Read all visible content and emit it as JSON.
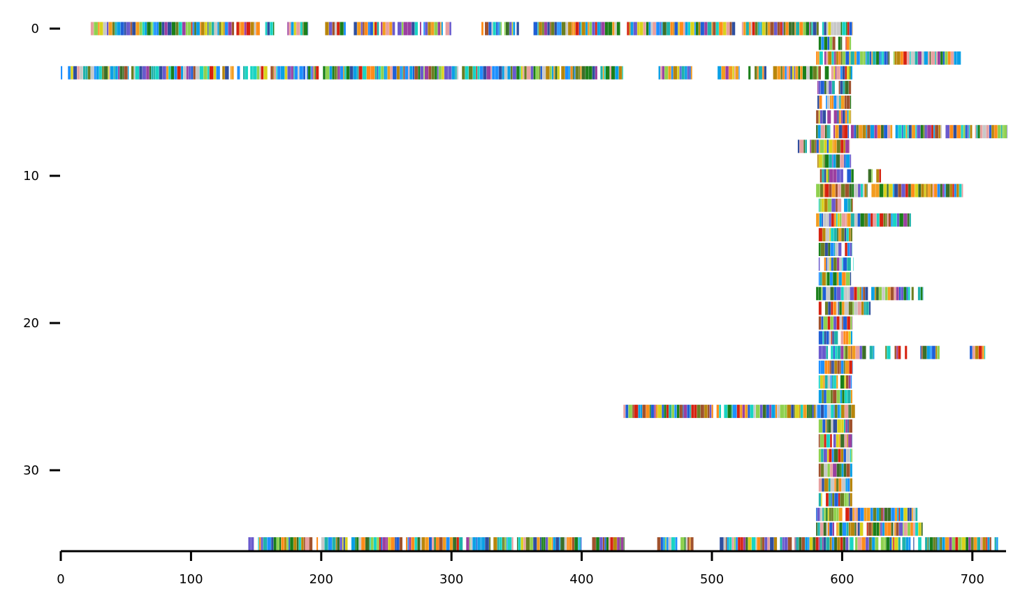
{
  "chart_data": {
    "type": "broken_barh",
    "title": "",
    "xlabel": "",
    "ylabel": "",
    "xlim": [
      0,
      727
    ],
    "ylim": [
      35.5,
      -1.5
    ],
    "y_inverted": true,
    "grid": false,
    "legend": "none",
    "x_ticks": [
      0,
      100,
      200,
      300,
      400,
      500,
      600,
      700
    ],
    "x_tick_labels": [
      "0",
      "100",
      "200",
      "300",
      "400",
      "500",
      "600",
      "700"
    ],
    "y_ticks": [
      0,
      10,
      20,
      30
    ],
    "y_tick_labels": [
      "0",
      "10",
      "20",
      "30"
    ],
    "palette": [
      "#1a7f1a",
      "#d62210",
      "#f39c1f",
      "#1f5fd6",
      "#3a6f28",
      "#19d4c4",
      "#d9d21c",
      "#6b7f22",
      "#0aa0e6",
      "#9b3fa0",
      "#2f4f9f",
      "#c8c8c8",
      "#e8a0a0",
      "#8fd14f",
      "#ff8c1a",
      "#6a5acd",
      "#1e90ff",
      "#a0522d",
      "#20b2aa",
      "#b8860b"
    ],
    "rows": [
      {
        "y": 0,
        "segments": [
          [
            23,
            153
          ],
          [
            157,
            164
          ],
          [
            174,
            190
          ],
          [
            203,
            219
          ],
          [
            225,
            300
          ],
          [
            323,
            352
          ],
          [
            363,
            518
          ],
          [
            523,
            608
          ]
        ]
      },
      {
        "y": 1,
        "segments": [
          [
            582,
            607
          ]
        ]
      },
      {
        "y": 2,
        "segments": [
          [
            580,
            692
          ]
        ]
      },
      {
        "y": 3,
        "segments": [
          [
            0,
            432
          ],
          [
            459,
            485
          ],
          [
            502,
            522
          ],
          [
            528,
            542
          ],
          [
            547,
            608
          ]
        ]
      },
      {
        "y": 4,
        "segments": [
          [
            581,
            607
          ]
        ]
      },
      {
        "y": 5,
        "segments": [
          [
            581,
            607
          ]
        ]
      },
      {
        "y": 6,
        "segments": [
          [
            580,
            607
          ]
        ]
      },
      {
        "y": 7,
        "segments": [
          [
            580,
            727
          ]
        ]
      },
      {
        "y": 8,
        "segments": [
          [
            565,
            606
          ]
        ]
      },
      {
        "y": 9,
        "segments": [
          [
            581,
            607
          ]
        ]
      },
      {
        "y": 10,
        "segments": [
          [
            583,
            609
          ],
          [
            620,
            630
          ]
        ]
      },
      {
        "y": 11,
        "segments": [
          [
            580,
            693
          ]
        ]
      },
      {
        "y": 12,
        "segments": [
          [
            582,
            608
          ]
        ]
      },
      {
        "y": 13,
        "segments": [
          [
            580,
            653
          ]
        ]
      },
      {
        "y": 14,
        "segments": [
          [
            582,
            608
          ]
        ]
      },
      {
        "y": 15,
        "segments": [
          [
            582,
            608
          ]
        ]
      },
      {
        "y": 16,
        "segments": [
          [
            582,
            609
          ]
        ]
      },
      {
        "y": 17,
        "segments": [
          [
            582,
            607
          ]
        ]
      },
      {
        "y": 18,
        "segments": [
          [
            580,
            662
          ]
        ]
      },
      {
        "y": 19,
        "segments": [
          [
            582,
            622
          ]
        ]
      },
      {
        "y": 20,
        "segments": [
          [
            582,
            608
          ]
        ]
      },
      {
        "y": 21,
        "segments": [
          [
            582,
            608
          ]
        ]
      },
      {
        "y": 22,
        "segments": [
          [
            582,
            650
          ],
          [
            660,
            675
          ],
          [
            698,
            710
          ]
        ]
      },
      {
        "y": 23,
        "segments": [
          [
            582,
            608
          ]
        ]
      },
      {
        "y": 24,
        "segments": [
          [
            582,
            608
          ]
        ]
      },
      {
        "y": 25,
        "segments": [
          [
            582,
            608
          ]
        ]
      },
      {
        "y": 26,
        "segments": [
          [
            432,
            610
          ]
        ]
      },
      {
        "y": 27,
        "segments": [
          [
            582,
            608
          ]
        ]
      },
      {
        "y": 28,
        "segments": [
          [
            582,
            608
          ]
        ]
      },
      {
        "y": 29,
        "segments": [
          [
            582,
            608
          ]
        ]
      },
      {
        "y": 30,
        "segments": [
          [
            582,
            608
          ]
        ]
      },
      {
        "y": 31,
        "segments": [
          [
            582,
            608
          ]
        ]
      },
      {
        "y": 32,
        "segments": [
          [
            582,
            608
          ]
        ]
      },
      {
        "y": 33,
        "segments": [
          [
            580,
            658
          ]
        ]
      },
      {
        "y": 34,
        "segments": [
          [
            580,
            662
          ]
        ]
      },
      {
        "y": 35,
        "segments": [
          [
            144,
            400
          ],
          [
            408,
            433
          ],
          [
            458,
            486
          ],
          [
            506,
            720
          ]
        ]
      }
    ]
  }
}
